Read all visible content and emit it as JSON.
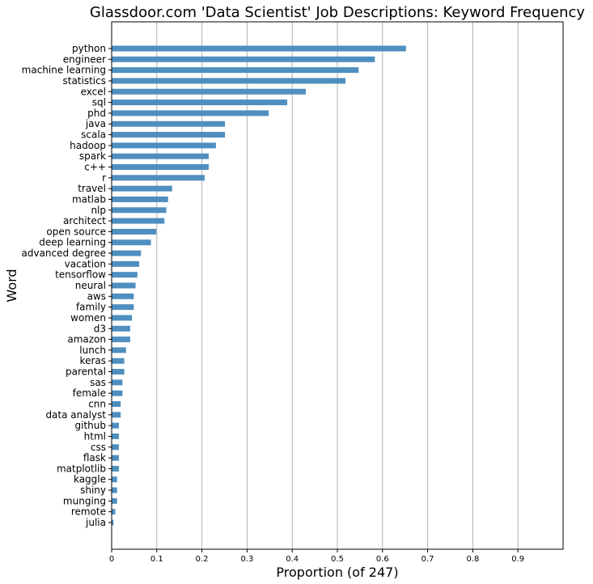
{
  "chart_data": {
    "type": "bar",
    "orientation": "horizontal",
    "title": "Glassdoor.com 'Data Scientist' Job Descriptions: Keyword Frequency",
    "xlabel": "Proportion (of 247)",
    "ylabel": "Word",
    "xlim": [
      0,
      1.0
    ],
    "xticks": [
      0,
      0.1,
      0.2,
      0.3,
      0.4,
      0.5,
      0.6,
      0.7,
      0.8,
      0.9
    ],
    "grid": "vertical",
    "bar_color": "#4f8fc0",
    "categories": [
      "python",
      "engineer",
      "machine learning",
      "statistics",
      "excel",
      "sql",
      "phd",
      "java",
      "scala",
      "hadoop",
      "spark",
      "c++",
      "r",
      "travel",
      "matlab",
      "nlp",
      "architect",
      "open source",
      "deep learning",
      "advanced degree",
      "vacation",
      "tensorflow",
      "neural",
      "aws",
      "family",
      "women",
      "d3",
      "amazon",
      "lunch",
      "keras",
      "parental",
      "sas",
      "female",
      "cnn",
      "data analyst",
      "github",
      "html",
      "css",
      "flask",
      "matplotlib",
      "kaggle",
      "shiny",
      "munging",
      "remote",
      "julia"
    ],
    "values": [
      0.652,
      0.583,
      0.547,
      0.518,
      0.43,
      0.389,
      0.348,
      0.251,
      0.251,
      0.231,
      0.215,
      0.215,
      0.206,
      0.134,
      0.125,
      0.121,
      0.117,
      0.099,
      0.087,
      0.065,
      0.061,
      0.057,
      0.053,
      0.049,
      0.049,
      0.045,
      0.041,
      0.041,
      0.032,
      0.028,
      0.028,
      0.024,
      0.024,
      0.02,
      0.02,
      0.016,
      0.016,
      0.016,
      0.016,
      0.016,
      0.012,
      0.012,
      0.012,
      0.008,
      0.004
    ]
  }
}
